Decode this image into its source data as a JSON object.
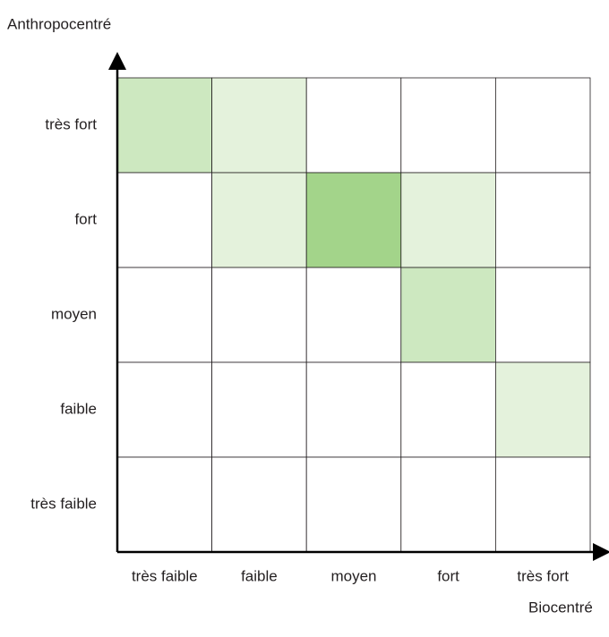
{
  "y_axis_label": "Anthropocentré",
  "x_axis_label": "Biocentré",
  "rows": [
    "très fort",
    "fort",
    "moyen",
    "faible",
    "très faible"
  ],
  "columns": [
    "très faible",
    "faible",
    "moyen",
    "fort",
    "très fort"
  ],
  "cell_colors": [
    [
      "#cde8c0",
      "#e4f2dc",
      "#ffffff",
      "#ffffff",
      "#ffffff"
    ],
    [
      "#ffffff",
      "#e4f2dc",
      "#a3d48a",
      "#e4f2dc",
      "#ffffff"
    ],
    [
      "#ffffff",
      "#ffffff",
      "#ffffff",
      "#cde8c0",
      "#ffffff"
    ],
    [
      "#ffffff",
      "#ffffff",
      "#ffffff",
      "#ffffff",
      "#e4f2dc"
    ],
    [
      "#ffffff",
      "#ffffff",
      "#ffffff",
      "#ffffff",
      "#ffffff"
    ]
  ]
}
